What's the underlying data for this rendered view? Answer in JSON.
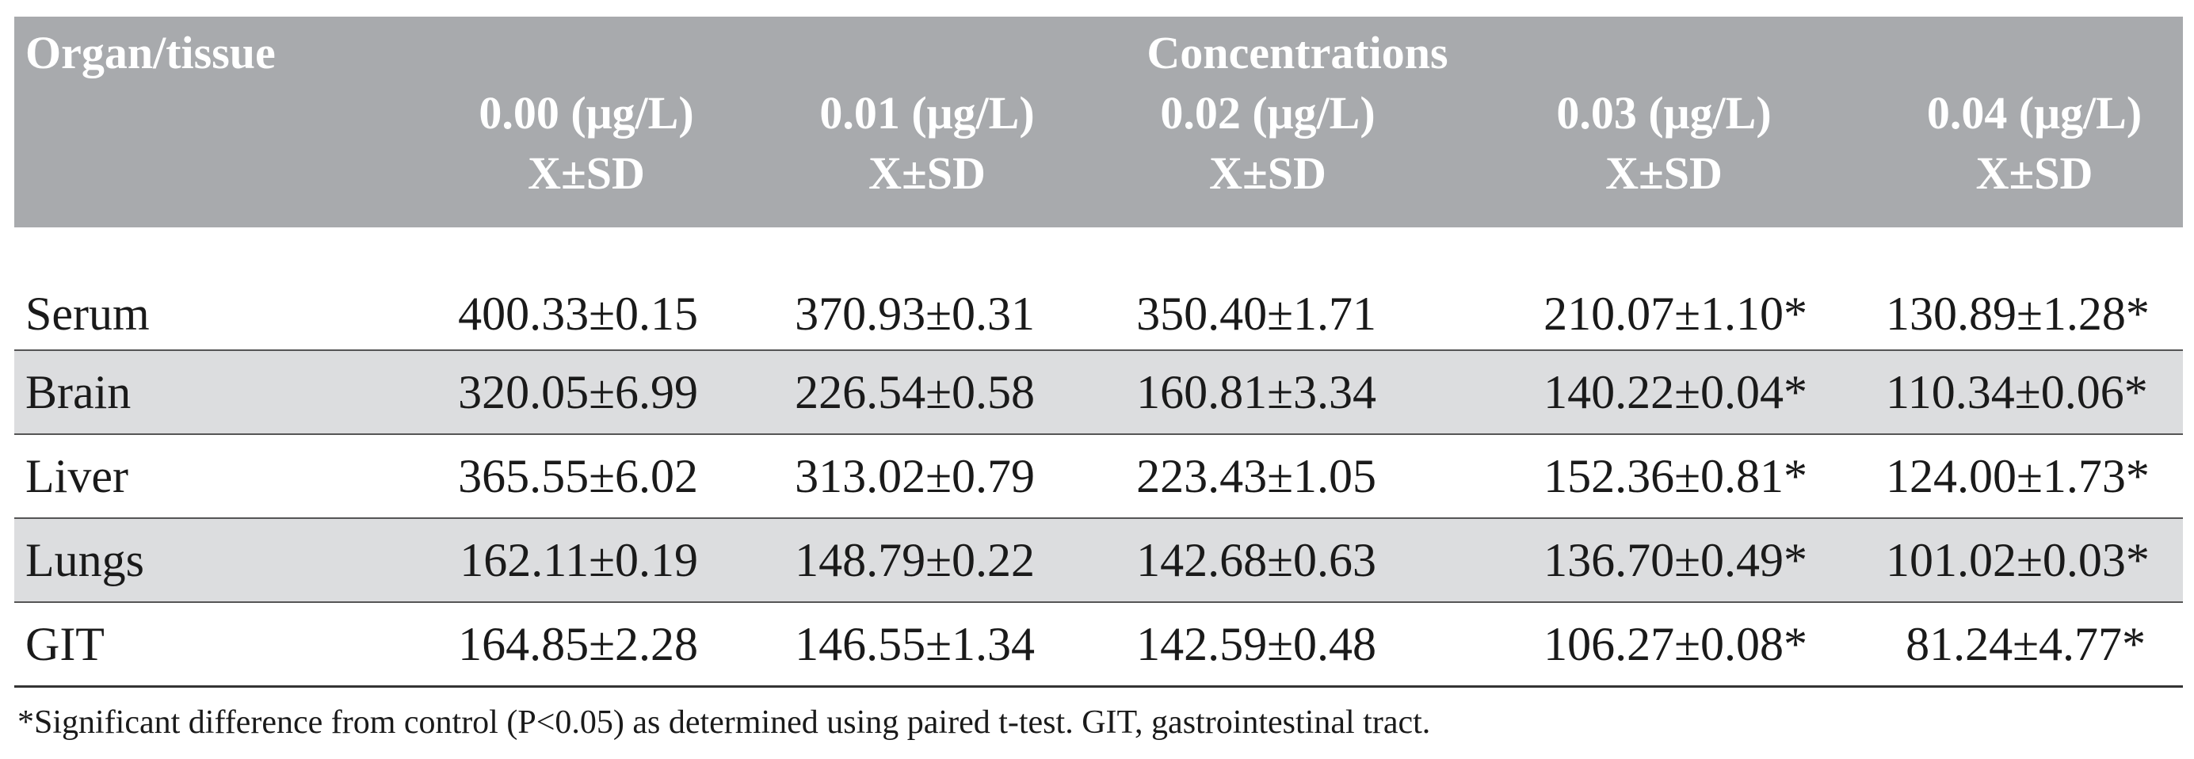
{
  "header": {
    "organ_label": "Organ/tissue",
    "group_label": "Concentrations",
    "columns": [
      {
        "concentration": "0.00 (μg/L)",
        "stat": "X±SD"
      },
      {
        "concentration": "0.01 (μg/L)",
        "stat": "X±SD"
      },
      {
        "concentration": "0.02 (μg/L)",
        "stat": "X±SD"
      },
      {
        "concentration": "0.03 (μg/L)",
        "stat": "X±SD"
      },
      {
        "concentration": "0.04 (μg/L)",
        "stat": "X±SD"
      }
    ]
  },
  "rows": [
    {
      "organ": "Serum",
      "values": [
        "400.33±0.15",
        "370.93±0.31",
        "350.40±1.71",
        "210.07±1.10*",
        "130.89±1.28*"
      ]
    },
    {
      "organ": "Brain",
      "values": [
        "320.05±6.99",
        "226.54±0.58",
        "160.81±3.34",
        "140.22±0.04*",
        "110.34±0.06*"
      ]
    },
    {
      "organ": "Liver",
      "values": [
        "365.55±6.02",
        "313.02±0.79",
        "223.43±1.05",
        "152.36±0.81*",
        "124.00±1.73*"
      ]
    },
    {
      "organ": "Lungs",
      "values": [
        "162.11±0.19",
        "148.79±0.22",
        "142.68±0.63",
        "136.70±0.49*",
        "101.02±0.03*"
      ]
    },
    {
      "organ": "GIT",
      "values": [
        "164.85±2.28",
        "146.55±1.34",
        "142.59±0.48",
        "106.27±0.08*",
        "81.24±4.77*"
      ]
    }
  ],
  "footnote": "*Significant difference from control (P<0.05) as determined using paired t-test. GIT, gastrointestinal tract."
}
